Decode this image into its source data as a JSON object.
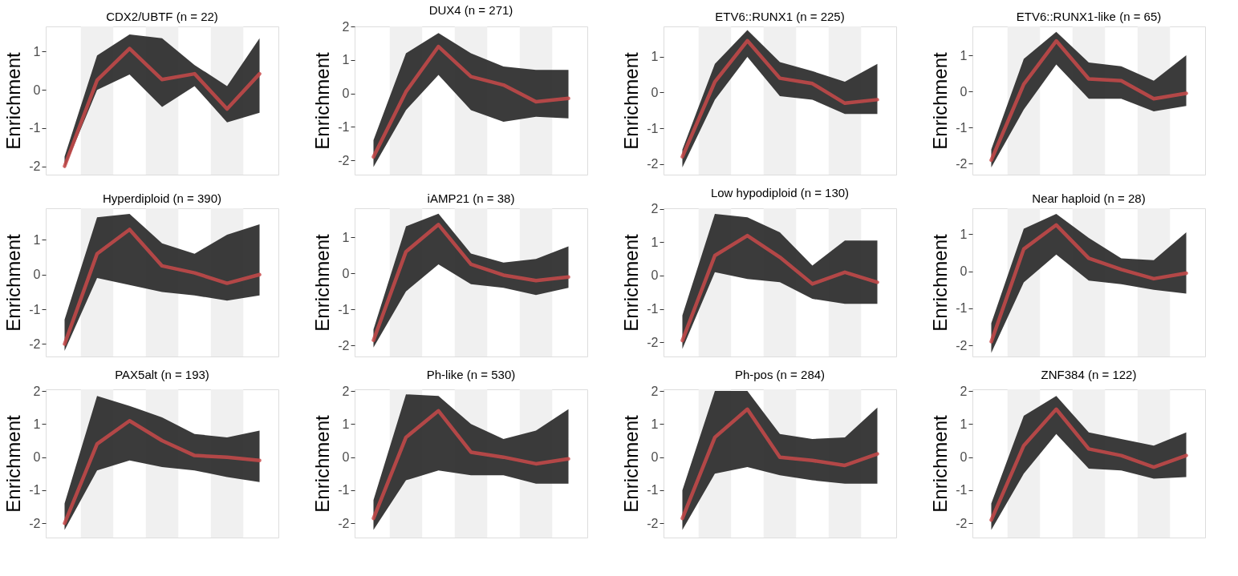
{
  "chart_data": [
    {
      "type": "line",
      "title": "CDX2/UBTF (n = 22)",
      "ylabel": "Enrichment",
      "categories": [
        null,
        null,
        null,
        null,
        null,
        null,
        null
      ],
      "ylim": [
        -2.22,
        1.66
      ],
      "yticks": [
        -2,
        -1,
        0,
        1
      ],
      "tick_labels": "y",
      "grid": false,
      "series": [
        {
          "color": "#c94a4a",
          "values": [
            -2.0,
            0.25,
            1.08,
            0.27,
            0.42,
            -0.5,
            0.42
          ],
          "lower": [
            -2.05,
            0.0,
            0.4,
            -0.45,
            0.1,
            -0.85,
            -0.6
          ],
          "upper": [
            -1.75,
            0.9,
            1.45,
            1.35,
            0.65,
            0.1,
            1.35
          ]
        }
      ]
    },
    {
      "type": "line",
      "title": "DUX4 (n = 271)",
      "ylabel": "Enrichment",
      "categories": [
        null,
        null,
        null,
        null,
        null,
        null,
        null
      ],
      "ylim": [
        -2.43,
        2.0
      ],
      "yticks": [
        -2,
        -1,
        0,
        1,
        2
      ],
      "tick_labels": "y",
      "grid": false,
      "series": [
        {
          "color": "#c94a4a",
          "values": [
            -1.9,
            0.05,
            1.4,
            0.5,
            0.25,
            -0.25,
            -0.15
          ],
          "lower": [
            -2.2,
            -0.5,
            0.55,
            -0.5,
            -0.85,
            -0.7,
            -0.75
          ],
          "upper": [
            -1.4,
            1.2,
            1.8,
            1.2,
            0.8,
            0.7,
            0.7
          ]
        }
      ]
    },
    {
      "type": "line",
      "title": "ETV6::RUNX1 (n = 225)",
      "ylabel": "Enrichment",
      "categories": [
        null,
        null,
        null,
        null,
        null,
        null,
        null
      ],
      "ylim": [
        -2.3,
        1.85
      ],
      "yticks": [
        -2,
        -1,
        0,
        1
      ],
      "tick_labels": "y",
      "grid": false,
      "series": [
        {
          "color": "#c94a4a",
          "values": [
            -1.8,
            0.3,
            1.45,
            0.4,
            0.25,
            -0.3,
            -0.2
          ],
          "lower": [
            -2.1,
            -0.2,
            1.0,
            -0.1,
            -0.2,
            -0.6,
            -0.6
          ],
          "upper": [
            -1.6,
            0.8,
            1.75,
            0.85,
            0.6,
            0.3,
            0.8
          ]
        }
      ]
    },
    {
      "type": "line",
      "title": "ETV6::RUNX1-like (n = 65)",
      "ylabel": "Enrichment",
      "categories": [
        null,
        null,
        null,
        null,
        null,
        null,
        null
      ],
      "ylim": [
        -2.3,
        1.8
      ],
      "yticks": [
        -2,
        -1,
        0,
        1
      ],
      "tick_labels": "y",
      "grid": false,
      "series": [
        {
          "color": "#c94a4a",
          "values": [
            -1.9,
            0.2,
            1.4,
            0.35,
            0.3,
            -0.2,
            -0.05
          ],
          "lower": [
            -2.1,
            -0.5,
            0.75,
            -0.2,
            -0.2,
            -0.55,
            -0.4
          ],
          "upper": [
            -1.6,
            0.9,
            1.65,
            0.8,
            0.7,
            0.3,
            1.0
          ]
        }
      ]
    },
    {
      "type": "line",
      "title": "Hyperdiploid (n = 390)",
      "ylabel": "Enrichment",
      "categories": [
        null,
        null,
        null,
        null,
        null,
        null,
        null
      ],
      "ylim": [
        -2.36,
        1.91
      ],
      "yticks": [
        -2,
        -1,
        0,
        1
      ],
      "tick_labels": "y",
      "grid": false,
      "series": [
        {
          "color": "#c94a4a",
          "values": [
            -2.0,
            0.6,
            1.3,
            0.25,
            0.05,
            -0.25,
            0.0
          ],
          "lower": [
            -2.2,
            -0.1,
            -0.3,
            -0.5,
            -0.6,
            -0.75,
            -0.6
          ],
          "upper": [
            -1.3,
            1.65,
            1.75,
            0.9,
            0.6,
            1.15,
            1.45
          ]
        }
      ]
    },
    {
      "type": "line",
      "title": "iAMP21 (n = 38)",
      "ylabel": "Enrichment",
      "categories": [
        null,
        null,
        null,
        null,
        null,
        null,
        null
      ],
      "ylim": [
        -2.3,
        1.8
      ],
      "yticks": [
        -2,
        -1,
        0,
        1
      ],
      "tick_labels": "y",
      "grid": false,
      "series": [
        {
          "color": "#c94a4a",
          "values": [
            -1.85,
            0.6,
            1.35,
            0.25,
            -0.05,
            -0.2,
            -0.1
          ],
          "lower": [
            -2.05,
            -0.5,
            0.25,
            -0.3,
            -0.4,
            -0.6,
            -0.4
          ],
          "upper": [
            -1.55,
            1.3,
            1.65,
            0.55,
            0.3,
            0.4,
            0.75
          ]
        }
      ]
    },
    {
      "type": "line",
      "title": "Low hypodiploid (n = 130)",
      "ylabel": "Enrichment",
      "categories": [
        null,
        null,
        null,
        null,
        null,
        null,
        null
      ],
      "ylim": [
        -2.43,
        2.02
      ],
      "yticks": [
        -2,
        -1,
        0,
        1,
        2
      ],
      "tick_labels": "y",
      "grid": false,
      "series": [
        {
          "color": "#c94a4a",
          "values": [
            -1.95,
            0.6,
            1.2,
            0.55,
            -0.25,
            0.1,
            -0.2
          ],
          "lower": [
            -2.2,
            0.1,
            -0.1,
            -0.2,
            -0.7,
            -0.85,
            -0.85
          ],
          "upper": [
            -1.2,
            1.85,
            1.75,
            1.3,
            0.3,
            1.05,
            1.05
          ]
        }
      ]
    },
    {
      "type": "line",
      "title": "Near haploid (n = 28)",
      "ylabel": "Enrichment",
      "categories": [
        null,
        null,
        null,
        null,
        null,
        null,
        null
      ],
      "ylim": [
        -2.3,
        1.7
      ],
      "yticks": [
        -2,
        -1,
        0,
        1
      ],
      "tick_labels": "y",
      "grid": false,
      "series": [
        {
          "color": "#c94a4a",
          "values": [
            -1.9,
            0.6,
            1.25,
            0.35,
            0.05,
            -0.2,
            -0.05
          ],
          "lower": [
            -2.2,
            -0.3,
            0.45,
            -0.25,
            -0.35,
            -0.5,
            -0.6
          ],
          "upper": [
            -1.4,
            1.15,
            1.55,
            0.9,
            0.35,
            0.3,
            1.05
          ]
        }
      ]
    },
    {
      "type": "line",
      "title": "PAX5alt (n = 193)",
      "ylabel": "Enrichment",
      "categories": [
        null,
        null,
        null,
        null,
        null,
        null,
        null
      ],
      "ylim": [
        -2.43,
        2.05
      ],
      "yticks": [
        -2,
        -1,
        0,
        1,
        2
      ],
      "tick_labels": "y",
      "grid": false,
      "series": [
        {
          "color": "#c94a4a",
          "values": [
            -2.0,
            0.4,
            1.1,
            0.5,
            0.05,
            0.0,
            -0.1
          ],
          "lower": [
            -2.2,
            -0.4,
            -0.1,
            -0.3,
            -0.4,
            -0.6,
            -0.75
          ],
          "upper": [
            -1.4,
            1.85,
            1.55,
            1.2,
            0.7,
            0.6,
            0.8
          ]
        }
      ]
    },
    {
      "type": "line",
      "title": "Ph-like (n = 530)",
      "ylabel": "Enrichment",
      "categories": [
        null,
        null,
        null,
        null,
        null,
        null,
        null
      ],
      "ylim": [
        -2.43,
        2.05
      ],
      "yticks": [
        -2,
        -1,
        0,
        1,
        2
      ],
      "tick_labels": "y",
      "grid": false,
      "series": [
        {
          "color": "#c94a4a",
          "values": [
            -1.85,
            0.6,
            1.4,
            0.15,
            0.0,
            -0.2,
            -0.05
          ],
          "lower": [
            -2.2,
            -0.7,
            -0.4,
            -0.55,
            -0.55,
            -0.8,
            -0.8
          ],
          "upper": [
            -1.3,
            1.9,
            1.85,
            1.0,
            0.55,
            0.8,
            1.45
          ]
        }
      ]
    },
    {
      "type": "line",
      "title": "Ph-pos (n = 284)",
      "ylabel": "Enrichment",
      "categories": [
        null,
        null,
        null,
        null,
        null,
        null,
        null
      ],
      "ylim": [
        -2.43,
        2.05
      ],
      "yticks": [
        -2,
        -1,
        0,
        1,
        2
      ],
      "tick_labels": "y",
      "grid": false,
      "series": [
        {
          "color": "#c94a4a",
          "values": [
            -1.85,
            0.6,
            1.45,
            0.0,
            -0.1,
            -0.25,
            0.1
          ],
          "lower": [
            -2.2,
            -0.5,
            -0.3,
            -0.55,
            -0.7,
            -0.8,
            -0.8
          ],
          "upper": [
            -1.0,
            2.0,
            2.0,
            0.7,
            0.55,
            0.6,
            1.5
          ]
        }
      ]
    },
    {
      "type": "line",
      "title": "ZNF384 (n = 122)",
      "ylabel": "Enrichment",
      "categories": [
        null,
        null,
        null,
        null,
        null,
        null,
        null
      ],
      "ylim": [
        -2.43,
        2.05
      ],
      "yticks": [
        -2,
        -1,
        0,
        1,
        2
      ],
      "tick_labels": "y",
      "grid": false,
      "series": [
        {
          "color": "#c94a4a",
          "values": [
            -1.9,
            0.35,
            1.45,
            0.25,
            0.05,
            -0.3,
            0.05
          ],
          "lower": [
            -2.2,
            -0.5,
            0.7,
            -0.35,
            -0.4,
            -0.65,
            -0.6
          ],
          "upper": [
            -1.4,
            1.25,
            1.85,
            0.75,
            0.55,
            0.35,
            0.75
          ]
        }
      ]
    }
  ]
}
